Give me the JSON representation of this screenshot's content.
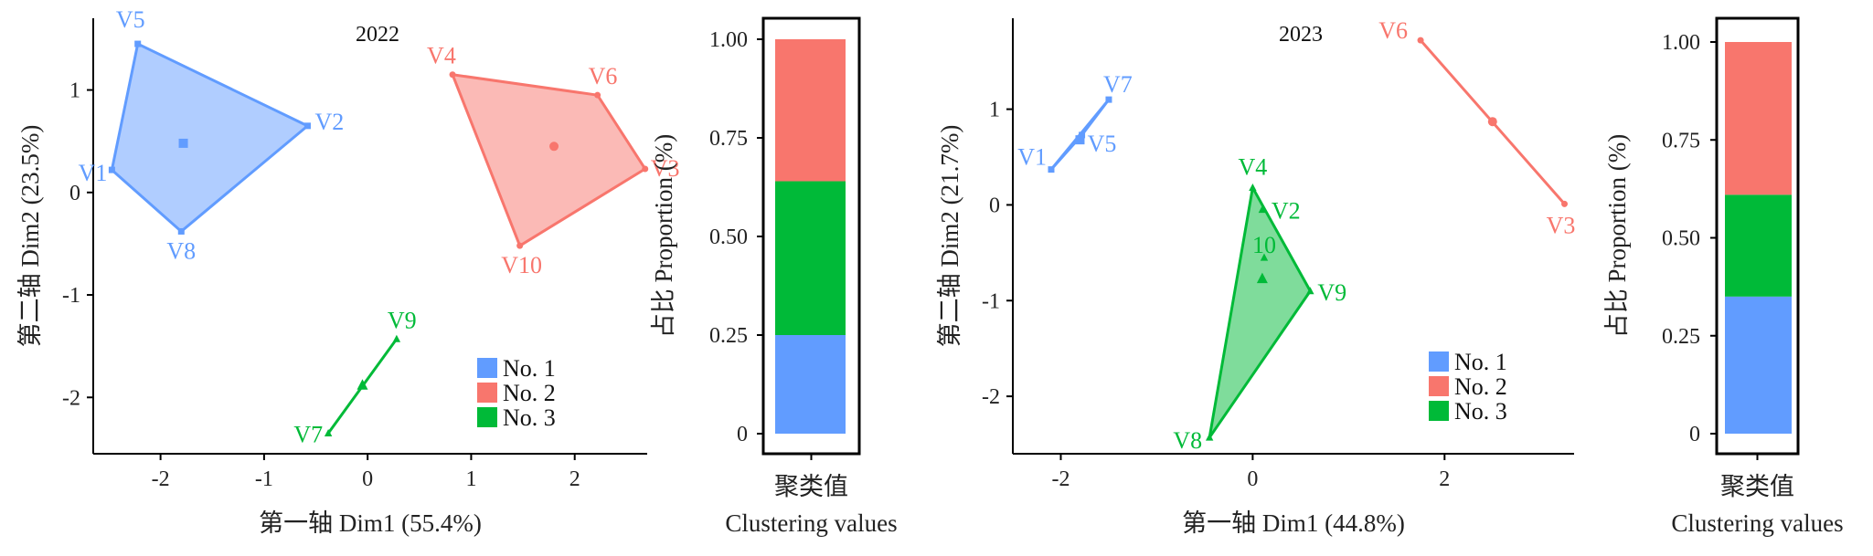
{
  "colors": {
    "group1": "#619CFF",
    "group2": "#F8766D",
    "group3": "#00BA38",
    "axis": "#000000"
  },
  "chart_data": [
    {
      "type": "scatter",
      "title": "2022",
      "xlabel": "第一轴 Dim1 (55.4%)",
      "ylabel": "第二轴 Dim2 (23.5%)",
      "xlim": [
        -2.65,
        2.7
      ],
      "ylim": [
        -2.55,
        1.7
      ],
      "xticks": [
        -2,
        -1,
        0,
        1,
        2
      ],
      "yticks": [
        -2,
        -1,
        0,
        1
      ],
      "legend_position": "bottom-right",
      "legend": [
        "No. 1",
        "No. 2",
        "No. 3"
      ],
      "clusters": [
        {
          "name": "No. 1",
          "color": "#619CFF",
          "marker": "square",
          "centroid": [
            -1.78,
            0.48
          ],
          "points": [
            {
              "label": "V5",
              "x": -2.22,
              "y": 1.45
            },
            {
              "label": "V2",
              "x": -0.58,
              "y": 0.65
            },
            {
              "label": "V8",
              "x": -1.8,
              "y": -0.38
            },
            {
              "label": "V1",
              "x": -2.47,
              "y": 0.22
            }
          ]
        },
        {
          "name": "No. 2",
          "color": "#F8766D",
          "marker": "circle",
          "centroid": [
            1.8,
            0.45
          ],
          "points": [
            {
              "label": "V4",
              "x": 0.82,
              "y": 1.15
            },
            {
              "label": "V6",
              "x": 2.22,
              "y": 0.95
            },
            {
              "label": "V3",
              "x": 2.68,
              "y": 0.23
            },
            {
              "label": "V10",
              "x": 1.47,
              "y": -0.52
            }
          ]
        },
        {
          "name": "No. 3",
          "color": "#00BA38",
          "marker": "triangle",
          "centroid": [
            -0.05,
            -1.88
          ],
          "points": [
            {
              "label": "V9",
              "x": 0.28,
              "y": -1.43
            },
            {
              "label": "V7",
              "x": -0.38,
              "y": -2.35
            }
          ]
        }
      ]
    },
    {
      "type": "bar",
      "title": "",
      "categories": [
        "聚类值"
      ],
      "xlabel": "Clustering values",
      "ylabel": "占比 Proportion (%)",
      "ylim": [
        0,
        1.0
      ],
      "yticks": [
        "0",
        "0.25",
        "0.50",
        "0.75",
        "1.00"
      ],
      "stacked": true,
      "series": [
        {
          "name": "No. 1",
          "color": "#619CFF",
          "values": [
            0.25
          ]
        },
        {
          "name": "No. 3",
          "color": "#00BA38",
          "values": [
            0.39
          ]
        },
        {
          "name": "No. 2",
          "color": "#F8766D",
          "values": [
            0.36
          ]
        }
      ]
    },
    {
      "type": "scatter",
      "title": "2023",
      "xlabel": "第一轴 Dim1 (44.8%)",
      "ylabel": "第二轴 Dim2 (21.7%)",
      "xlim": [
        -2.5,
        3.35
      ],
      "ylim": [
        -2.6,
        1.95
      ],
      "xticks": [
        -2,
        0,
        2
      ],
      "yticks": [
        -2,
        -1,
        0,
        1
      ],
      "legend_position": "bottom-right",
      "legend": [
        "No. 1",
        "No. 2",
        "No. 3"
      ],
      "clusters": [
        {
          "name": "No. 1",
          "color": "#619CFF",
          "marker": "square",
          "centroid": [
            -1.8,
            0.68
          ],
          "points": [
            {
              "label": "V7",
              "x": -1.5,
              "y": 1.1
            },
            {
              "label": "V5",
              "x": -1.78,
              "y": 0.73
            },
            {
              "label": "V1",
              "x": -2.1,
              "y": 0.37
            }
          ]
        },
        {
          "name": "No. 2",
          "color": "#F8766D",
          "marker": "circle",
          "centroid": [
            2.5,
            0.87
          ],
          "points": [
            {
              "label": "V6",
              "x": 1.75,
              "y": 1.72
            },
            {
              "label": "V3",
              "x": 3.25,
              "y": 0.01
            }
          ]
        },
        {
          "name": "No. 3",
          "color": "#00BA38",
          "marker": "triangle",
          "centroid": [
            0.1,
            -0.77
          ],
          "points": [
            {
              "label": "V4",
              "x": 0.0,
              "y": 0.18
            },
            {
              "label": "V2",
              "x": 0.1,
              "y": -0.05
            },
            {
              "label": "10",
              "x": 0.12,
              "y": -0.55
            },
            {
              "label": "V9",
              "x": 0.6,
              "y": -0.9
            },
            {
              "label": "V8",
              "x": -0.45,
              "y": -2.43
            }
          ]
        }
      ]
    },
    {
      "type": "bar",
      "title": "",
      "categories": [
        "聚类值"
      ],
      "xlabel": "Clustering values",
      "ylabel": "占比 Proportion (%)",
      "ylim": [
        0,
        1.0
      ],
      "yticks": [
        "0",
        "0.25",
        "0.50",
        "0.75",
        "1.00"
      ],
      "stacked": true,
      "series": [
        {
          "name": "No. 1",
          "color": "#619CFF",
          "values": [
            0.35
          ]
        },
        {
          "name": "No. 3",
          "color": "#00BA38",
          "values": [
            0.26
          ]
        },
        {
          "name": "No. 2",
          "color": "#F8766D",
          "values": [
            0.39
          ]
        }
      ]
    }
  ]
}
